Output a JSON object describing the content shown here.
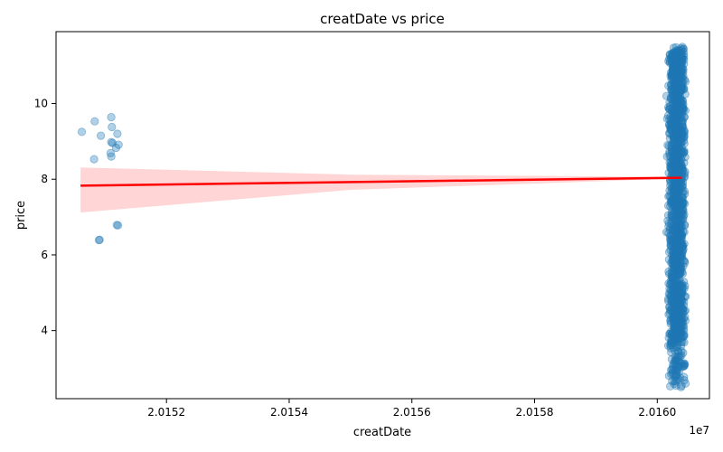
{
  "chart_data": {
    "type": "scatter",
    "title": "creatDate vs price",
    "xlabel": "creatDate",
    "ylabel": "price",
    "x_offset_label": "1e7",
    "xlim": [
      20150200,
      20160850
    ],
    "ylim": [
      2.2,
      11.9
    ],
    "x_ticks": [
      20152000,
      20154000,
      20156000,
      20158000,
      20160000
    ],
    "x_tick_labels": [
      "2.0152",
      "2.0154",
      "2.0156",
      "2.0158",
      "2.0160"
    ],
    "y_ticks": [
      4,
      6,
      8,
      10
    ],
    "y_tick_labels": [
      "4",
      "6",
      "8",
      "10"
    ],
    "grid": false,
    "colors": {
      "points": "#1f77b4",
      "regression_line": "#ff0000",
      "confidence_band": "#ffb3b3"
    },
    "regression": {
      "x": [
        20150600,
        20160400
      ],
      "y": [
        7.83,
        8.04
      ]
    },
    "confidence_band": {
      "x": [
        20150600,
        20155000,
        20160400
      ],
      "lower": [
        7.12,
        7.72,
        8.02
      ],
      "upper": [
        8.31,
        8.12,
        8.06
      ]
    },
    "points": [
      {
        "x": 20150620,
        "y": 9.25
      },
      {
        "x": 20150830,
        "y": 9.53
      },
      {
        "x": 20150930,
        "y": 9.15
      },
      {
        "x": 20151100,
        "y": 9.64
      },
      {
        "x": 20151110,
        "y": 9.38
      },
      {
        "x": 20151200,
        "y": 9.2
      },
      {
        "x": 20151100,
        "y": 8.98
      },
      {
        "x": 20151120,
        "y": 8.96
      },
      {
        "x": 20151180,
        "y": 8.83
      },
      {
        "x": 20151220,
        "y": 8.91
      },
      {
        "x": 20151090,
        "y": 8.69
      },
      {
        "x": 20151100,
        "y": 8.6
      },
      {
        "x": 20150820,
        "y": 8.53
      },
      {
        "x": 20150910,
        "y": 6.4
      },
      {
        "x": 20150900,
        "y": 6.39
      },
      {
        "x": 20151190,
        "y": 6.79
      },
      {
        "x": 20151210,
        "y": 6.78
      }
    ],
    "dense_cluster": {
      "x_center": 20160320,
      "x_jitter": 150,
      "y_min": 2.5,
      "y_max": 11.5,
      "count": 1500,
      "outliers": [
        {
          "x": 20160150,
          "y": 10.2
        },
        {
          "x": 20160180,
          "y": 9.9
        },
        {
          "x": 20160160,
          "y": 9.6
        },
        {
          "x": 20160200,
          "y": 9.2
        },
        {
          "x": 20160170,
          "y": 8.9
        },
        {
          "x": 20160160,
          "y": 8.6
        },
        {
          "x": 20160200,
          "y": 7.7
        },
        {
          "x": 20160180,
          "y": 7.3
        },
        {
          "x": 20160170,
          "y": 6.9
        },
        {
          "x": 20160150,
          "y": 6.6
        },
        {
          "x": 20160220,
          "y": 6.4
        },
        {
          "x": 20160200,
          "y": 5.1
        },
        {
          "x": 20160180,
          "y": 3.6
        },
        {
          "x": 20160450,
          "y": 3.1
        },
        {
          "x": 20160460,
          "y": 2.6
        }
      ]
    }
  }
}
